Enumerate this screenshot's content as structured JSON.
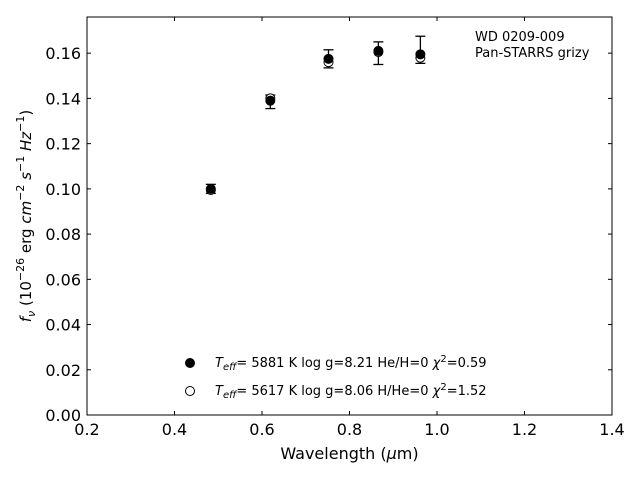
{
  "chart_data": {
    "type": "scatter",
    "xlabel": "Wavelength (μm)",
    "ylabel": "f_ν (10^-26 erg cm^-2 s^-1 Hz^-1)",
    "xlim": [
      0.2,
      1.4
    ],
    "ylim": [
      0.0,
      0.176
    ],
    "xticks": [
      0.2,
      0.4,
      0.6,
      0.8,
      1.0,
      1.2,
      1.4
    ],
    "xtick_labels": [
      "0.2",
      "0.4",
      "0.6",
      "0.8",
      "1.0",
      "1.2",
      "1.4"
    ],
    "yticks": [
      0.0,
      0.02,
      0.04,
      0.06,
      0.08,
      0.1,
      0.12,
      0.14,
      0.16
    ],
    "ytick_labels": [
      "0.00",
      "0.02",
      "0.04",
      "0.06",
      "0.08",
      "0.10",
      "0.12",
      "0.14",
      "0.16"
    ],
    "grid": false,
    "annotation": [
      "WD 0209-009",
      "Pan-STARRS grizy"
    ],
    "observed": {
      "x": [
        0.483,
        0.619,
        0.752,
        0.866,
        0.962
      ],
      "y": [
        0.1,
        0.1385,
        0.1575,
        0.16,
        0.1615
      ],
      "yerr": [
        0.002,
        0.003,
        0.004,
        0.005,
        0.006
      ]
    },
    "series": [
      {
        "name": "T_eff= 5881 K log g=8.21 He/H=0 χ²=0.59",
        "marker": "filled-circle",
        "x": [
          0.483,
          0.619,
          0.752,
          0.866,
          0.962
        ],
        "y": [
          0.1,
          0.139,
          0.1575,
          0.161,
          0.1595
        ]
      },
      {
        "name": "T_eff= 5617 K log g=8.06 H/He=0 χ²=1.52",
        "marker": "open-circle",
        "x": [
          0.483,
          0.619,
          0.752,
          0.866,
          0.962
        ],
        "y": [
          0.0995,
          0.14,
          0.156,
          0.1605,
          0.158
        ]
      }
    ],
    "legend_placement": "lower-center"
  }
}
